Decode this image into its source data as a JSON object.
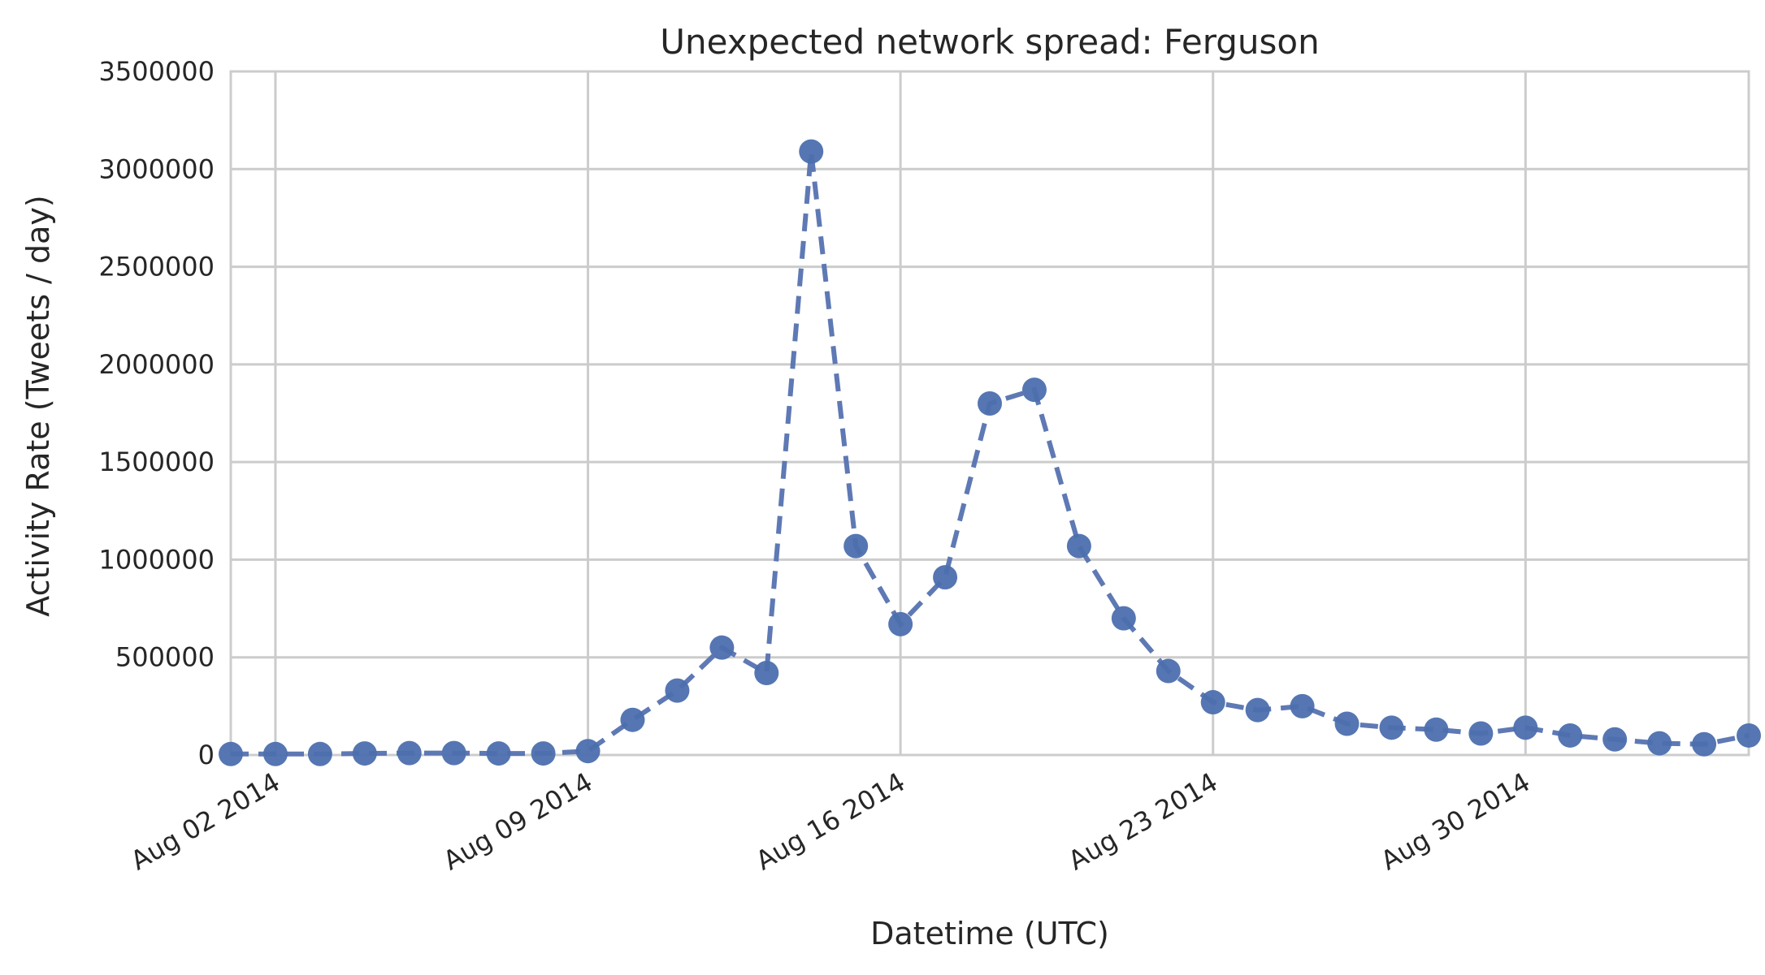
{
  "chart_data": {
    "type": "line",
    "title": "Unexpected network spread: Ferguson",
    "xlabel": "Datetime (UTC)",
    "ylabel": "Activity Rate (Tweets / day)",
    "x_start": "2014-08-01",
    "x_end": "2014-09-04",
    "ylim": [
      0,
      3500000
    ],
    "yticks": [
      0,
      500000,
      1000000,
      1500000,
      2000000,
      2500000,
      3000000,
      3500000
    ],
    "ytick_labels": [
      "0",
      "500000",
      "1000000",
      "1500000",
      "2000000",
      "2500000",
      "3000000",
      "3500000"
    ],
    "xticks": [
      "2014-08-02",
      "2014-08-09",
      "2014-08-16",
      "2014-08-23",
      "2014-08-30"
    ],
    "xtick_labels": [
      "Aug 02 2014",
      "Aug 09 2014",
      "Aug 16 2014",
      "Aug 23 2014",
      "Aug 30 2014"
    ],
    "grid": true,
    "marker": "circle",
    "line_style": "dashed",
    "color": "#4c6fae",
    "series": [
      {
        "x": [
          "2014-08-01",
          "2014-08-02",
          "2014-08-03",
          "2014-08-04",
          "2014-08-05",
          "2014-08-06",
          "2014-08-07",
          "2014-08-08",
          "2014-08-09",
          "2014-08-10",
          "2014-08-11",
          "2014-08-12",
          "2014-08-13",
          "2014-08-14",
          "2014-08-15",
          "2014-08-16",
          "2014-08-17",
          "2014-08-18",
          "2014-08-19",
          "2014-08-20",
          "2014-08-21",
          "2014-08-22",
          "2014-08-23",
          "2014-08-24",
          "2014-08-25",
          "2014-08-26",
          "2014-08-27",
          "2014-08-28",
          "2014-08-29",
          "2014-08-30",
          "2014-08-31",
          "2014-09-01",
          "2014-09-02",
          "2014-09-03",
          "2014-09-04"
        ],
        "values": [
          5000,
          5000,
          5000,
          8000,
          10000,
          10000,
          8000,
          8000,
          20000,
          180000,
          330000,
          550000,
          420000,
          3090000,
          1070000,
          670000,
          910000,
          1800000,
          1870000,
          1070000,
          700000,
          430000,
          270000,
          230000,
          250000,
          160000,
          140000,
          130000,
          110000,
          140000,
          100000,
          80000,
          60000,
          55000,
          100000
        ]
      }
    ]
  }
}
